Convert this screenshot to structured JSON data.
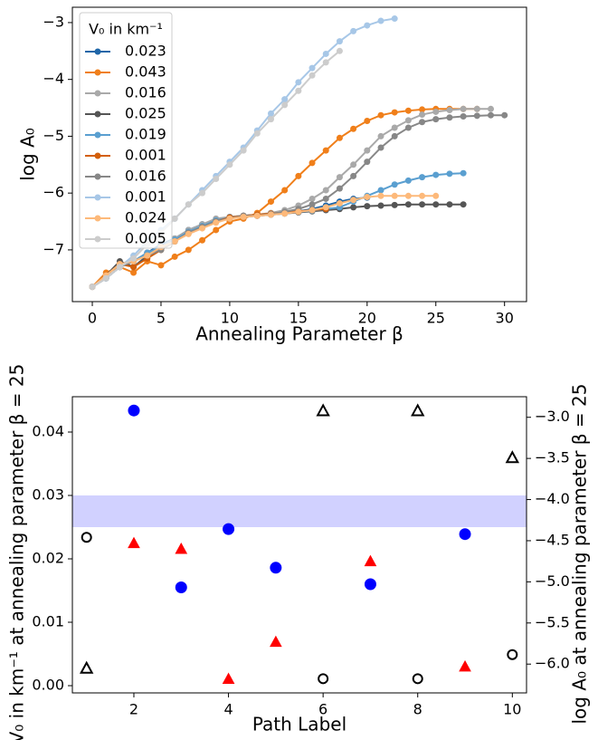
{
  "chart_data": [
    {
      "type": "line",
      "xlabel": "Annealing Parameter β",
      "ylabel": "log A₀",
      "legend_title": "V₀ in km⁻¹",
      "legend": "upper left",
      "x": [
        0,
        1,
        2,
        3,
        4,
        5,
        6,
        7,
        8,
        9,
        10,
        11,
        12,
        13,
        14,
        15,
        16,
        17,
        18,
        19,
        20,
        21,
        22,
        23,
        24,
        25,
        26,
        27,
        28,
        29,
        30
      ],
      "xlim": [
        -1.45,
        31.6
      ],
      "xticks": [
        0,
        5,
        10,
        15,
        20,
        25,
        30
      ],
      "ylim": [
        -7.91,
        -2.73
      ],
      "yticks": [
        {
          "value": -7,
          "label": "−7"
        },
        {
          "value": -6,
          "label": "−6"
        },
        {
          "value": -5,
          "label": "−5"
        },
        {
          "value": -4,
          "label": "−4"
        },
        {
          "value": -3,
          "label": "−3"
        }
      ],
      "series": [
        {
          "name": "0.023",
          "color": "#1f66a8",
          "values": [
            -7.65,
            -7.5,
            -7.3,
            -7.2,
            -7.05,
            -6.9,
            -6.8,
            -6.65,
            -6.55,
            -6.48,
            -6.42,
            -6.4,
            -6.38,
            -6.36,
            -6.34,
            -6.32,
            -6.28,
            -6.22,
            -6.15,
            -6.1,
            -6.08,
            null,
            null,
            null,
            null,
            null,
            null,
            null,
            null,
            null,
            null
          ]
        },
        {
          "name": "0.043",
          "color": "#f07f1a",
          "values": [
            -7.65,
            -7.4,
            -7.3,
            -7.4,
            -7.2,
            -7.27,
            -7.12,
            -7.0,
            -6.83,
            -6.65,
            -6.5,
            -6.45,
            -6.35,
            -6.15,
            -5.95,
            -5.7,
            -5.47,
            -5.25,
            -5.03,
            -4.87,
            -4.73,
            -4.63,
            -4.58,
            -4.55,
            -4.53,
            -4.52,
            -4.52,
            -4.52,
            -4.52,
            null,
            null
          ]
        },
        {
          "name": "0.016",
          "color": "#a9a9a9",
          "values": [
            -7.65,
            -7.5,
            -7.3,
            -7.2,
            -7.05,
            -6.95,
            -6.8,
            -6.65,
            -6.55,
            -6.45,
            -6.42,
            -6.4,
            -6.38,
            -6.35,
            -6.3,
            -6.22,
            -6.1,
            -5.95,
            -5.72,
            -5.5,
            -5.25,
            -5.0,
            -4.85,
            -4.72,
            -4.62,
            -4.57,
            -4.54,
            -4.52,
            -4.52,
            -4.52,
            null
          ]
        },
        {
          "name": "0.025",
          "color": "#555555",
          "values": [
            -7.65,
            -7.45,
            -7.2,
            -7.3,
            -7.1,
            -7.0,
            -6.85,
            -6.7,
            -6.6,
            -6.5,
            -6.43,
            -6.42,
            -6.4,
            -6.38,
            -6.36,
            -6.34,
            -6.32,
            -6.3,
            -6.28,
            -6.25,
            -6.23,
            -6.22,
            -6.21,
            -6.2,
            -6.2,
            -6.2,
            -6.2,
            -6.2,
            null,
            null,
            null
          ]
        },
        {
          "name": "0.019",
          "color": "#5a9fd0",
          "values": [
            -7.65,
            -7.5,
            -7.3,
            -7.2,
            -7.05,
            -6.95,
            -6.82,
            -6.68,
            -6.58,
            -6.48,
            -6.43,
            -6.41,
            -6.39,
            -6.37,
            -6.35,
            -6.33,
            -6.31,
            -6.28,
            -6.25,
            -6.15,
            -6.05,
            -5.95,
            -5.85,
            -5.78,
            -5.72,
            -5.68,
            -5.66,
            -5.65,
            null,
            null,
            null
          ]
        },
        {
          "name": "0.001",
          "color": "#d35f0a",
          "values": [
            -7.65,
            -7.45,
            -7.25,
            -7.3,
            -7.15,
            -7.0,
            -6.85,
            -6.7,
            -6.6,
            -6.5,
            -6.43,
            -6.4,
            -6.38,
            -6.36,
            -6.34,
            -6.32,
            -6.3,
            -6.28,
            null,
            null,
            null,
            null,
            null,
            null,
            null,
            null,
            null,
            null,
            null,
            null,
            null
          ]
        },
        {
          "name": "0.016",
          "color": "#878787",
          "values": [
            -7.65,
            -7.5,
            -7.3,
            -7.2,
            -7.1,
            -7.0,
            -6.85,
            -6.7,
            -6.6,
            -6.5,
            -6.45,
            -6.4,
            -6.4,
            -6.37,
            -6.33,
            -6.28,
            -6.2,
            -6.1,
            -5.92,
            -5.7,
            -5.45,
            -5.2,
            -5.0,
            -4.85,
            -4.75,
            -4.7,
            -4.67,
            -4.65,
            -4.64,
            -4.63,
            -4.63
          ]
        },
        {
          "name": "0.001",
          "color": "#a7c7e7",
          "values": [
            -7.65,
            -7.5,
            -7.3,
            -7.1,
            -6.85,
            -6.65,
            -6.45,
            -6.2,
            -5.95,
            -5.7,
            -5.45,
            -5.2,
            -4.9,
            -4.6,
            -4.35,
            -4.05,
            -3.8,
            -3.55,
            -3.33,
            -3.15,
            -3.05,
            -2.97,
            -2.93,
            null,
            null,
            null,
            null,
            null,
            null,
            null,
            null
          ]
        },
        {
          "name": "0.024",
          "color": "#fdb97a",
          "values": [
            -7.65,
            -7.45,
            -7.25,
            -7.2,
            -7.1,
            -6.95,
            -6.85,
            -6.72,
            -6.62,
            -6.52,
            -6.45,
            -6.42,
            -6.4,
            -6.38,
            -6.36,
            -6.33,
            -6.3,
            -6.25,
            -6.18,
            -6.12,
            -6.07,
            -6.05,
            -6.05,
            -6.05,
            -6.05,
            -6.05,
            null,
            null,
            null,
            null,
            null
          ]
        },
        {
          "name": "0.005",
          "color": "#cccccc",
          "values": [
            -7.65,
            -7.5,
            -7.3,
            -7.15,
            -6.9,
            -6.7,
            -6.45,
            -6.2,
            -6.0,
            -5.75,
            -5.5,
            -5.25,
            -4.95,
            -4.7,
            -4.45,
            -4.2,
            -3.93,
            -3.7,
            -3.5,
            null,
            null,
            null,
            null,
            null,
            null,
            null,
            null,
            null,
            null,
            null,
            null
          ]
        }
      ]
    },
    {
      "type": "scatter",
      "xlabel": "Path Label",
      "ylabel": "V₀ in km⁻¹ at annealing parameter β = 25",
      "ylabel_color": "#0000ff",
      "y2label": "log A₀ at annealing parameter β = 25",
      "y2label_color": "#ff0000",
      "xlim": [
        0.7,
        10.3
      ],
      "xticks": [
        2,
        4,
        6,
        8,
        10
      ],
      "ylim": [
        -0.00114,
        0.04557
      ],
      "yticks": [
        {
          "value": 0,
          "label": "0.00"
        },
        {
          "value": 0.01,
          "label": "0.01"
        },
        {
          "value": 0.02,
          "label": "0.02"
        },
        {
          "value": 0.03,
          "label": "0.03"
        },
        {
          "value": 0.04,
          "label": "0.04"
        }
      ],
      "y2lim": [
        -6.35,
        -2.75
      ],
      "y2ticks": [
        {
          "value": -6,
          "label": "−6.0"
        },
        {
          "value": -5.5,
          "label": "−5.5"
        },
        {
          "value": -5,
          "label": "−5.0"
        },
        {
          "value": -4.5,
          "label": "−4.5"
        },
        {
          "value": -4,
          "label": "−4.0"
        },
        {
          "value": -3.5,
          "label": "−3.5"
        },
        {
          "value": -3,
          "label": "−3.0"
        }
      ],
      "band": {
        "ymin": 0.025,
        "ymax": 0.03,
        "color": "#ccccff"
      },
      "series": [
        {
          "color": "#0000ff",
          "marker": "circle",
          "filled": true,
          "x": [
            2,
            3,
            4,
            5,
            7,
            9
          ],
          "values": [
            0.0434,
            0.0155,
            0.0247,
            0.0186,
            0.016,
            0.0239
          ]
        },
        {
          "color": "#000000",
          "marker": "circle",
          "filled": false,
          "x": [
            1,
            6,
            8,
            10
          ],
          "values": [
            0.0234,
            0.0011,
            0.0011,
            0.0049
          ]
        },
        {
          "color": "#ff0000",
          "marker": "triangle",
          "filled": true,
          "axis": "y2",
          "x": [
            2,
            3,
            4,
            5,
            7,
            9
          ],
          "values": [
            -4.53,
            -4.6,
            -6.18,
            -5.73,
            -4.75,
            -6.03
          ]
        },
        {
          "color": "#000000",
          "marker": "triangle",
          "filled": false,
          "axis": "y2",
          "x": [
            1,
            6,
            8,
            10
          ],
          "values": [
            -6.05,
            -2.92,
            -2.92,
            -3.49
          ]
        }
      ]
    }
  ]
}
